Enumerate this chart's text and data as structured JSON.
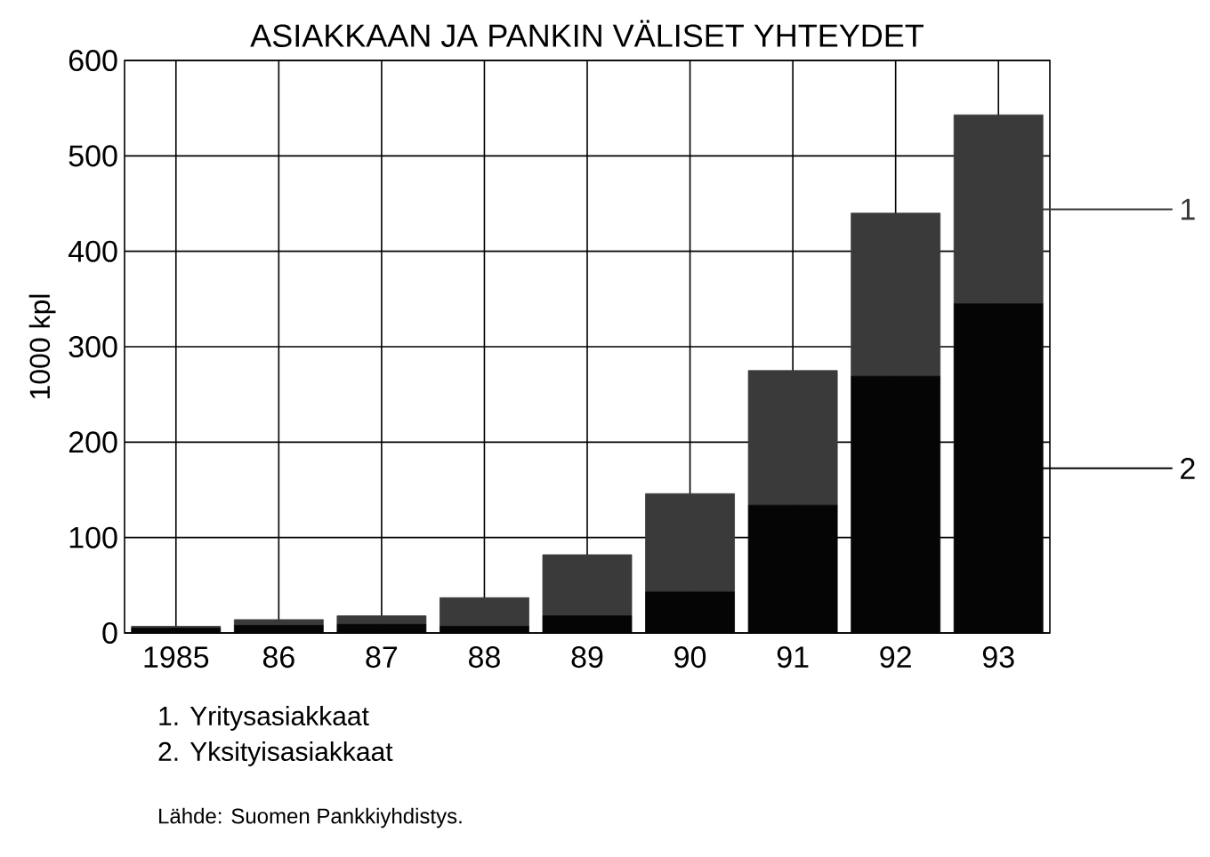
{
  "chart_data": {
    "type": "bar",
    "title": "ASIAKKAAN JA PANKIN VÄLISET YHTEYDET",
    "ylabel": "1000 kpl",
    "categories": [
      "1985",
      "86",
      "87",
      "88",
      "89",
      "90",
      "91",
      "92",
      "93"
    ],
    "stacked": true,
    "series": [
      {
        "name": "2",
        "color": "#050505",
        "values": [
          5,
          8,
          9,
          7,
          18,
          43,
          134,
          269,
          345
        ]
      },
      {
        "name": "1",
        "color": "#3a3a3a",
        "values": [
          2,
          6,
          9,
          30,
          64,
          103,
          141,
          171,
          198
        ]
      }
    ],
    "legend": "right",
    "ylim": [
      0,
      600
    ],
    "yticks": [
      0,
      100,
      200,
      300,
      400,
      500,
      600
    ],
    "grid": true,
    "annotations": [
      "1. Yritysasiakkaat",
      "2. Yksityisasiakkaat",
      "Lähde: Suomen Pankkiyhdistys."
    ]
  }
}
